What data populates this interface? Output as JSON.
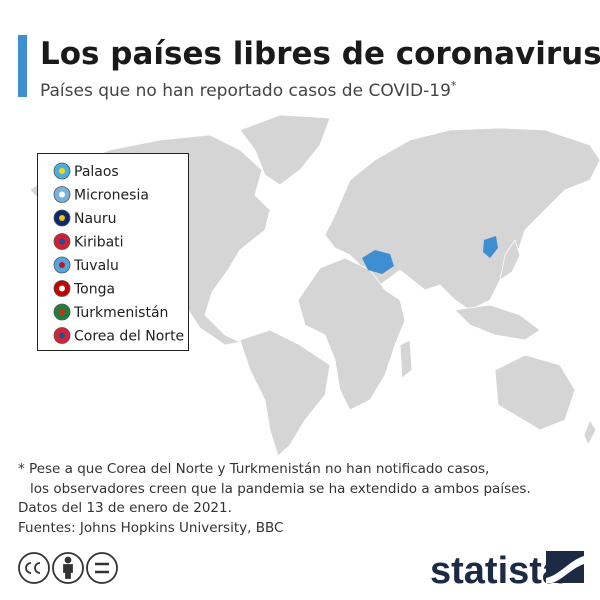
{
  "header": {
    "title": "Los países libres de coronavirus",
    "subtitle": "Países que no han reportado casos de COVID-19",
    "subtitle_mark": "*"
  },
  "legend": {
    "items": [
      "Palaos",
      "Micronesia",
      "Nauru",
      "Kiribati",
      "Tuvalu",
      "Tonga",
      "Turkmenistán",
      "Corea del Norte"
    ]
  },
  "notes": [
    "* Pese a que Corea del Norte y Turkmenistán no han notificado casos,",
    "los observadores creen que la pandemia se ha extendido a ambos países.",
    "Datos del 13 de enero de 2021.",
    "Fuentes: Johns Hopkins University, BBC"
  ],
  "brand": "statista"
}
